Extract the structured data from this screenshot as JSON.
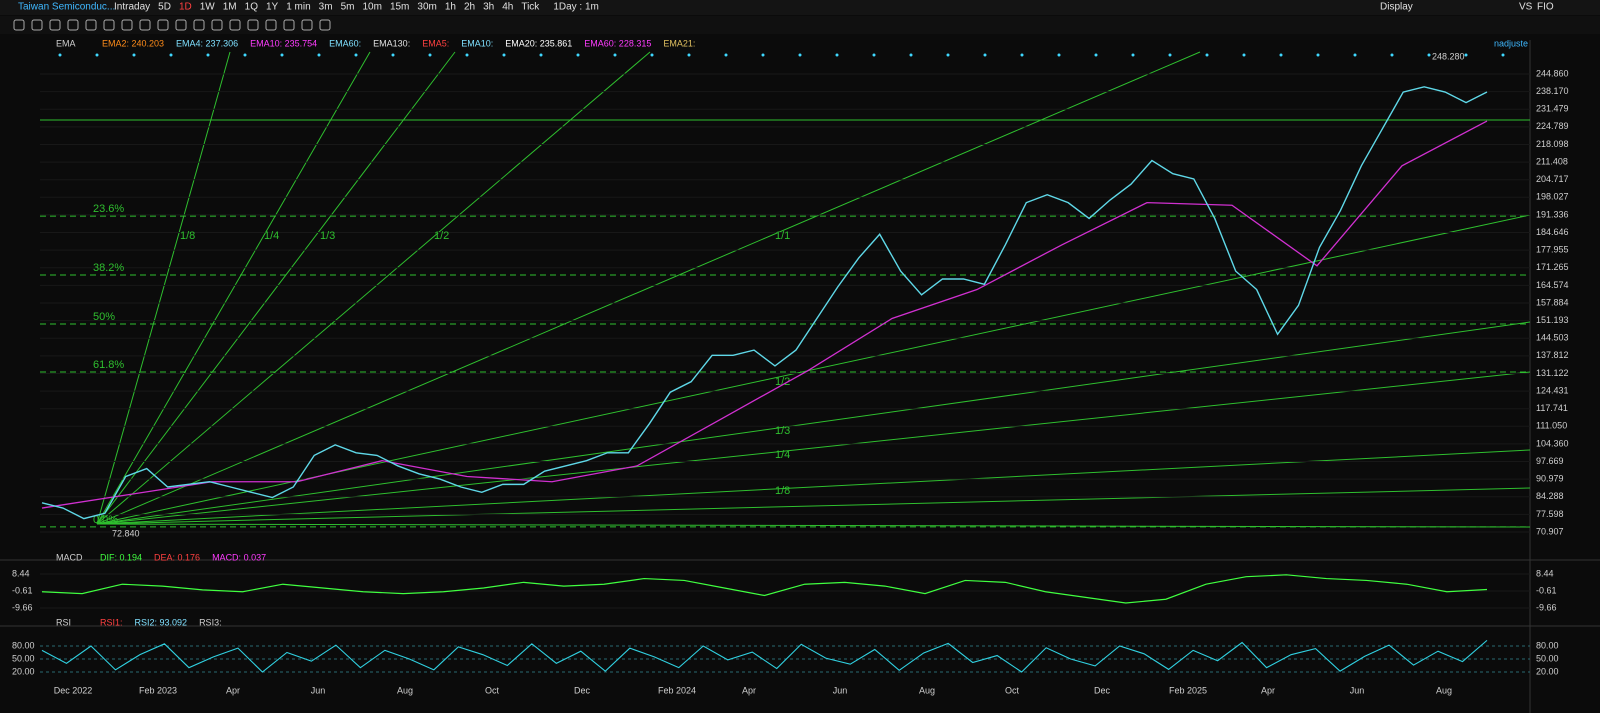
{
  "toolbar": {
    "symbol": "Taiwan Semiconduc...",
    "periods": [
      "Intraday",
      "5D",
      "1D",
      "1W",
      "1M",
      "1Q",
      "1Y",
      "1 min",
      "3m",
      "5m",
      "10m",
      "15m",
      "30m",
      "1h",
      "2h",
      "3h",
      "4h",
      "Tick"
    ],
    "range": "1Day : 1m",
    "display": "Display",
    "vs": "VS",
    "fio": "FIO"
  },
  "main": {
    "indicator": "EMA",
    "legend": [
      {
        "text": "EMA2: 240.203",
        "color": "#ff8c1a"
      },
      {
        "text": "EMA4: 237.306",
        "color": "#7fe0ff"
      },
      {
        "text": "EMA10: 235.754",
        "color": "#ff3cff"
      },
      {
        "text": "EMA60:",
        "color": "#7fe0ff"
      },
      {
        "text": "EMA130:",
        "color": "#e0e0e0"
      },
      {
        "text": "EMA5:",
        "color": "#ff4040"
      },
      {
        "text": "EMA10:",
        "color": "#7fe0ff"
      },
      {
        "text": "EMA20: 235.861",
        "color": "#ffffff"
      },
      {
        "text": "EMA60: 228.315",
        "color": "#ff3cff"
      },
      {
        "text": "EMA21:",
        "color": "#e0c060"
      }
    ],
    "adjust": "nadjuste",
    "yticks": [
      {
        "value": 244.86,
        "label": "244.860"
      },
      {
        "value": 238.17,
        "label": "238.170"
      },
      231.479,
      224.789,
      218.098,
      211.408,
      204.717,
      198.027,
      191.336,
      184.646,
      177.955,
      171.265,
      164.574,
      157.884,
      151.193,
      144.503,
      137.812,
      131.122,
      124.431,
      117.741,
      {
        "value": 111.05,
        "label": "111.050"
      },
      {
        "value": 104.36,
        "label": "104.360"
      },
      97.669,
      90.979,
      84.288,
      77.598,
      70.907
    ],
    "high_label": "248.280",
    "low_label": "72.840",
    "fib": [
      {
        "label": "23.6%",
        "value": 190.9
      },
      {
        "label": "38.2%",
        "value": 168.5
      },
      {
        "label": "50%",
        "value": 149.9
      },
      {
        "label": "61.8%",
        "value": 131.7
      },
      {
        "label": "0.0%",
        "value": 72.84
      }
    ],
    "fan_top": [
      "1/8",
      "1/4",
      "1/3",
      "1/2",
      "1/1"
    ],
    "fan_bottom": [
      "1/2",
      "1/3",
      "1/4",
      "1/8"
    ],
    "price": [
      82,
      80,
      76,
      78,
      92,
      95,
      88,
      89,
      90,
      88,
      86,
      84,
      88,
      100,
      104,
      101,
      100,
      96,
      93,
      91,
      88,
      86,
      89,
      89,
      94,
      96,
      98,
      101,
      101,
      112,
      124,
      128,
      138,
      138,
      140,
      134,
      140,
      152,
      164,
      175,
      184,
      170,
      161,
      167,
      167,
      165,
      180,
      196,
      199,
      196,
      190,
      197,
      203,
      212,
      207,
      205,
      190,
      170,
      163,
      146,
      157,
      179,
      193,
      210,
      224,
      238,
      240,
      238,
      234,
      238
    ],
    "ema60": [
      80,
      85,
      90,
      90,
      98,
      92,
      90,
      96,
      114,
      132,
      152,
      163,
      180,
      196,
      195,
      172,
      210,
      227
    ],
    "xlabels": [
      "Dec 2022",
      "Feb 2023",
      "Apr",
      "Jun",
      "Aug",
      "Oct",
      "Dec",
      "Feb 2024",
      "Apr",
      "Jun",
      "Aug",
      "Oct",
      "Dec",
      "Feb 2025",
      "Apr",
      "Jun",
      "Aug"
    ]
  },
  "macd": {
    "name": "MACD",
    "legend": [
      {
        "text": "DIF: 0.194",
        "color": "#40ff40"
      },
      {
        "text": "DEA: 0.176",
        "color": "#ff4040"
      },
      {
        "text": "MACD: 0.037",
        "color": "#ff3cff"
      }
    ],
    "yticks": [
      8.44,
      -0.61,
      -9.66
    ],
    "dif": [
      -1,
      -2,
      3,
      2,
      0,
      -1,
      3,
      1,
      -1,
      -2,
      -1,
      1,
      4,
      2,
      3,
      6,
      5,
      1,
      -3,
      3,
      4,
      2,
      -2,
      5,
      4,
      -1,
      -4,
      -7,
      -5,
      3,
      7,
      8,
      6,
      5,
      3,
      -1,
      0.2
    ]
  },
  "rsi": {
    "name": "RSI",
    "legend": [
      {
        "text": "RSI1:",
        "color": "#ff4040"
      },
      {
        "text": "RSI2: 93.092",
        "color": "#7fe0ff"
      },
      {
        "text": "RSI3:",
        "color": "#cfcfcf"
      }
    ],
    "yticks": [
      {
        "value": 80,
        "label": "80.00"
      },
      {
        "value": 50,
        "label": "50.00"
      },
      {
        "value": 20,
        "label": "20.00"
      }
    ],
    "values": [
      70,
      40,
      80,
      25,
      60,
      85,
      30,
      55,
      75,
      20,
      65,
      45,
      82,
      30,
      70,
      50,
      25,
      78,
      60,
      35,
      85,
      40,
      68,
      22,
      75,
      55,
      30,
      80,
      48,
      66,
      28,
      84,
      52,
      38,
      72,
      24,
      64,
      86,
      42,
      58,
      20,
      76,
      50,
      34,
      80,
      62,
      26,
      70,
      46,
      88,
      30,
      60,
      74,
      22,
      56,
      82,
      36,
      68,
      44,
      93
    ]
  }
}
